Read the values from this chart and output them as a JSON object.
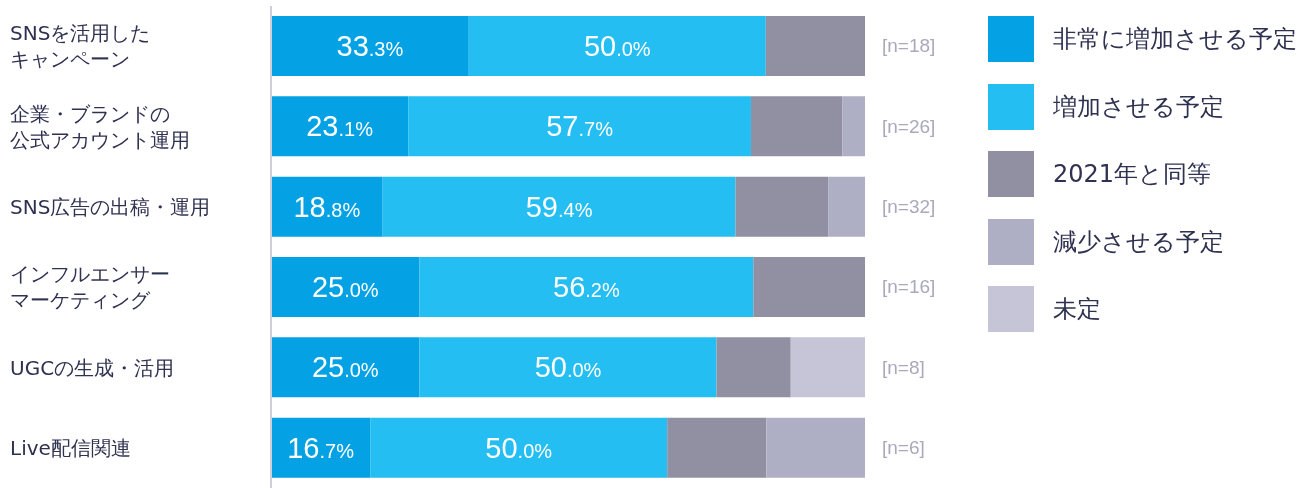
{
  "chart_data": {
    "type": "bar",
    "orientation": "horizontal",
    "stacked": true,
    "categories": [
      "SNSを活用したキャンペーン",
      "企業・ブランドの公式アカウント運用",
      "SNS広告の出稿・運用",
      "インフルエンサーマーケティング",
      "UGCの生成・活用",
      "Live配信関連"
    ],
    "series": [
      {
        "name": "非常に増加させる予定",
        "color": "#04a2e4",
        "values": [
          33.3,
          23.1,
          18.8,
          25.0,
          25.0,
          16.7
        ],
        "value_labels": [
          "33.3%",
          "23.1%",
          "18.8%",
          "25.0%",
          "25.0%",
          "16.7%"
        ]
      },
      {
        "name": "増加させる予定",
        "color": "#25bef3",
        "values": [
          50.0,
          57.7,
          59.4,
          56.2,
          50.0,
          50.0
        ],
        "value_labels": [
          "50.0%",
          "57.7%",
          "59.4%",
          "56.2%",
          "50.0%",
          "50.0%"
        ]
      },
      {
        "name": "2021年と同等",
        "color": "#9090a2",
        "values": [
          16.7,
          15.4,
          15.6,
          18.8,
          12.5,
          16.7
        ]
      },
      {
        "name": "減少させる予定",
        "color": "#aeaec4",
        "values": [
          null,
          3.8,
          6.2,
          null,
          null,
          16.7
        ]
      },
      {
        "name": "未定",
        "color": "#c6c5d8",
        "values": [
          null,
          null,
          null,
          null,
          12.5,
          null
        ]
      }
    ],
    "xlim": [
      0,
      100
    ],
    "tick_labels": "y",
    "legend": "top right",
    "annotations": [
      "[n=18]",
      "[n=26]",
      "[n=32]",
      "[n=16]",
      "[n=8]",
      "[n=6]"
    ]
  }
}
